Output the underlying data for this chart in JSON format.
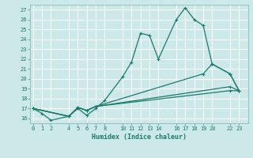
{
  "xlabel": "Humidex (Indice chaleur)",
  "background_color": "#cce8e8",
  "grid_color": "#b8d8d8",
  "line_color": "#1a7a6e",
  "x_ticks": [
    0,
    1,
    2,
    4,
    5,
    6,
    7,
    8,
    10,
    11,
    12,
    13,
    14,
    16,
    17,
    18,
    19,
    20,
    22,
    23
  ],
  "ylim": [
    15.5,
    27.5
  ],
  "xlim": [
    -0.3,
    24.0
  ],
  "yticks": [
    16,
    17,
    18,
    19,
    20,
    21,
    22,
    23,
    24,
    25,
    26,
    27
  ],
  "line1_x": [
    0,
    1,
    2,
    4,
    5,
    6,
    7,
    8,
    10,
    11,
    12,
    13,
    14,
    16,
    17,
    18,
    19,
    20,
    22,
    23
  ],
  "line1_y": [
    17.0,
    16.5,
    15.8,
    16.2,
    17.0,
    16.3,
    17.0,
    17.8,
    20.2,
    21.7,
    24.6,
    24.4,
    22.0,
    26.0,
    27.2,
    26.0,
    25.4,
    21.5,
    20.5,
    18.8
  ],
  "line2_x": [
    0,
    4,
    5,
    6,
    7,
    19,
    20,
    22,
    23
  ],
  "line2_y": [
    17.0,
    16.2,
    17.1,
    16.8,
    17.2,
    20.5,
    21.5,
    20.5,
    18.8
  ],
  "line3_x": [
    0,
    4,
    5,
    6,
    7,
    22,
    23
  ],
  "line3_y": [
    17.0,
    16.2,
    17.1,
    16.8,
    17.2,
    19.2,
    18.8
  ],
  "line4_x": [
    0,
    4,
    5,
    6,
    7,
    22,
    23
  ],
  "line4_y": [
    17.0,
    16.2,
    17.1,
    16.8,
    17.2,
    18.8,
    18.8
  ]
}
